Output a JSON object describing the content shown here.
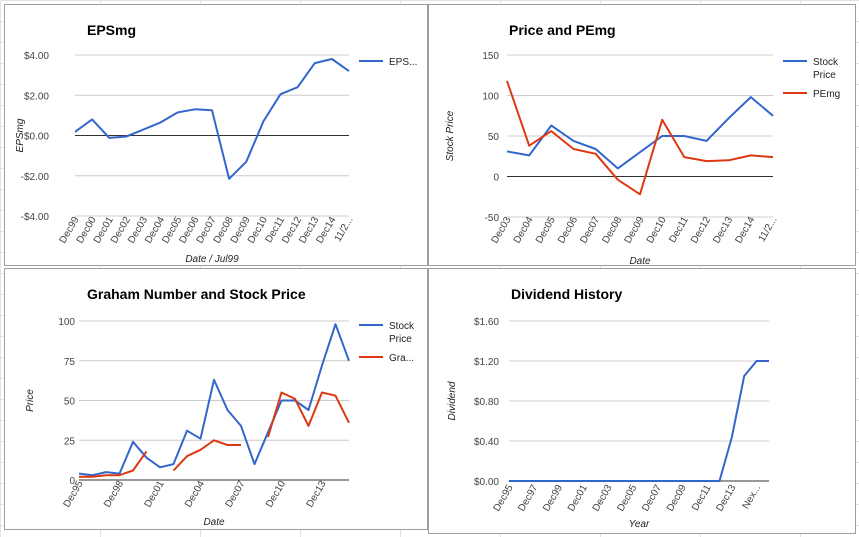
{
  "chart_data": [
    {
      "type": "line",
      "title": "EPSmg",
      "xlabel": "Date / Jul99",
      "ylabel": "EPSmg",
      "ylim": [
        -4,
        4
      ],
      "y_ticks": [
        "$4.00",
        "$2.00",
        "$0.00",
        "-$2.00",
        "-$4.00"
      ],
      "y_tick_values": [
        4,
        2,
        0,
        -2,
        -4
      ],
      "categories": [
        "Dec99",
        "Dec00",
        "Dec01",
        "Dec02",
        "Dec03",
        "Dec04",
        "Dec05",
        "Dec06",
        "Dec07",
        "Dec08",
        "Dec09",
        "Dec10",
        "Dec11",
        "Dec12",
        "Dec13",
        "Dec14",
        "11/2..."
      ],
      "series": [
        {
          "name": "EPS...",
          "color": "#3366cc",
          "x": [
            0,
            1,
            2,
            3,
            4,
            5,
            6,
            7,
            8,
            9,
            10,
            11,
            12,
            13,
            14,
            15,
            16
          ],
          "values": [
            0.18,
            0.8,
            -0.12,
            -0.05,
            0.3,
            0.65,
            1.15,
            1.3,
            1.25,
            -2.15,
            -1.3,
            0.7,
            2.05,
            2.4,
            3.6,
            3.8,
            3.2
          ]
        }
      ],
      "legend_position": "right",
      "grid": true
    },
    {
      "type": "line",
      "title": "Price and PEmg",
      "xlabel": "Date",
      "ylabel": "Stock Price",
      "ylim": [
        -50,
        150
      ],
      "y_ticks": [
        "150",
        "100",
        "50",
        "0",
        "-50"
      ],
      "y_tick_values": [
        150,
        100,
        50,
        0,
        -50
      ],
      "categories": [
        "Dec03",
        "Dec04",
        "Dec05",
        "Dec06",
        "Dec07",
        "Dec08",
        "Dec09",
        "Dec10",
        "Dec11",
        "Dec12",
        "Dec13",
        "Dec14",
        "11/2..."
      ],
      "series": [
        {
          "name": "Stock Price",
          "color": "#3366cc",
          "x": [
            0,
            1,
            2,
            3,
            4,
            5,
            6,
            7,
            8,
            9,
            10,
            11,
            12
          ],
          "values": [
            31,
            26,
            63,
            44,
            34,
            10,
            30,
            50,
            50,
            44,
            72,
            98,
            75
          ]
        },
        {
          "name": "PEmg",
          "color": "#dc3912",
          "x": [
            0,
            1,
            2,
            3,
            4,
            5,
            6,
            7,
            8,
            9,
            10,
            11,
            12
          ],
          "values": [
            118,
            38,
            56,
            34,
            28,
            -4,
            -22,
            70,
            24,
            19,
            20,
            26,
            24
          ]
        }
      ],
      "legend_position": "right",
      "grid": true
    },
    {
      "type": "line",
      "title": "Graham Number and Stock Price",
      "xlabel": "Date",
      "ylabel": "Price",
      "ylim": [
        0,
        100
      ],
      "y_ticks": [
        "100",
        "75",
        "50",
        "25",
        "0"
      ],
      "y_tick_values": [
        100,
        75,
        50,
        25,
        0
      ],
      "categories": [
        "Dec95",
        "Dec98",
        "Dec01",
        "Dec04",
        "Dec07",
        "Dec10",
        "Dec13"
      ],
      "category_positions": [
        0,
        3,
        6,
        9,
        12,
        15,
        18
      ],
      "x_range": [
        0,
        20
      ],
      "series": [
        {
          "name": "Stock Price",
          "color": "#3366cc",
          "x": [
            0,
            1,
            2,
            3,
            4,
            5,
            6,
            7,
            8,
            9,
            10,
            11,
            12,
            13,
            14,
            15,
            16,
            17,
            18,
            19,
            20
          ],
          "values": [
            4,
            3,
            5,
            4,
            24,
            14,
            8,
            10,
            31,
            26,
            63,
            44,
            34,
            10,
            30,
            50,
            50,
            44,
            72,
            98,
            75
          ]
        },
        {
          "name": "Gra...",
          "color": "#dc3912",
          "segments": [
            {
              "x": [
                0,
                1,
                2,
                3,
                4,
                5
              ],
              "values": [
                2,
                2,
                3,
                3,
                6,
                18
              ]
            },
            {
              "x": [
                7,
                8,
                9,
                10,
                11,
                12
              ],
              "values": [
                6,
                15,
                19,
                25,
                22,
                22
              ]
            },
            {
              "x": [
                14,
                15,
                16,
                17,
                18,
                19,
                20
              ],
              "values": [
                27,
                55,
                51,
                34,
                55,
                53,
                36
              ]
            }
          ]
        }
      ],
      "legend_position": "right",
      "grid": true
    },
    {
      "type": "line",
      "title": "Dividend History",
      "xlabel": "Year",
      "ylabel": "Dividend",
      "ylim": [
        0,
        1.6
      ],
      "y_ticks": [
        "$1.60",
        "$1.20",
        "$0.80",
        "$0.40",
        "$0.00"
      ],
      "y_tick_values": [
        1.6,
        1.2,
        0.8,
        0.4,
        0
      ],
      "categories": [
        "Dec95",
        "Dec97",
        "Dec99",
        "Dec01",
        "Dec03",
        "Dec05",
        "Dec07",
        "Dec09",
        "Dec11",
        "Dec13",
        "Nex..."
      ],
      "category_positions": [
        0,
        2,
        4,
        6,
        8,
        10,
        12,
        14,
        16,
        18,
        20
      ],
      "x_range": [
        0,
        21
      ],
      "series": [
        {
          "name": "Dividend",
          "color": "#3366cc",
          "x": [
            0,
            1,
            2,
            3,
            4,
            5,
            6,
            7,
            8,
            9,
            10,
            11,
            12,
            13,
            14,
            15,
            16,
            17,
            18,
            19,
            20,
            21
          ],
          "values": [
            0,
            0,
            0,
            0,
            0,
            0,
            0,
            0,
            0,
            0,
            0,
            0,
            0,
            0,
            0,
            0,
            0,
            0,
            0.44,
            1.05,
            1.2,
            1.2
          ]
        }
      ],
      "legend_position": "none",
      "grid": true
    }
  ]
}
